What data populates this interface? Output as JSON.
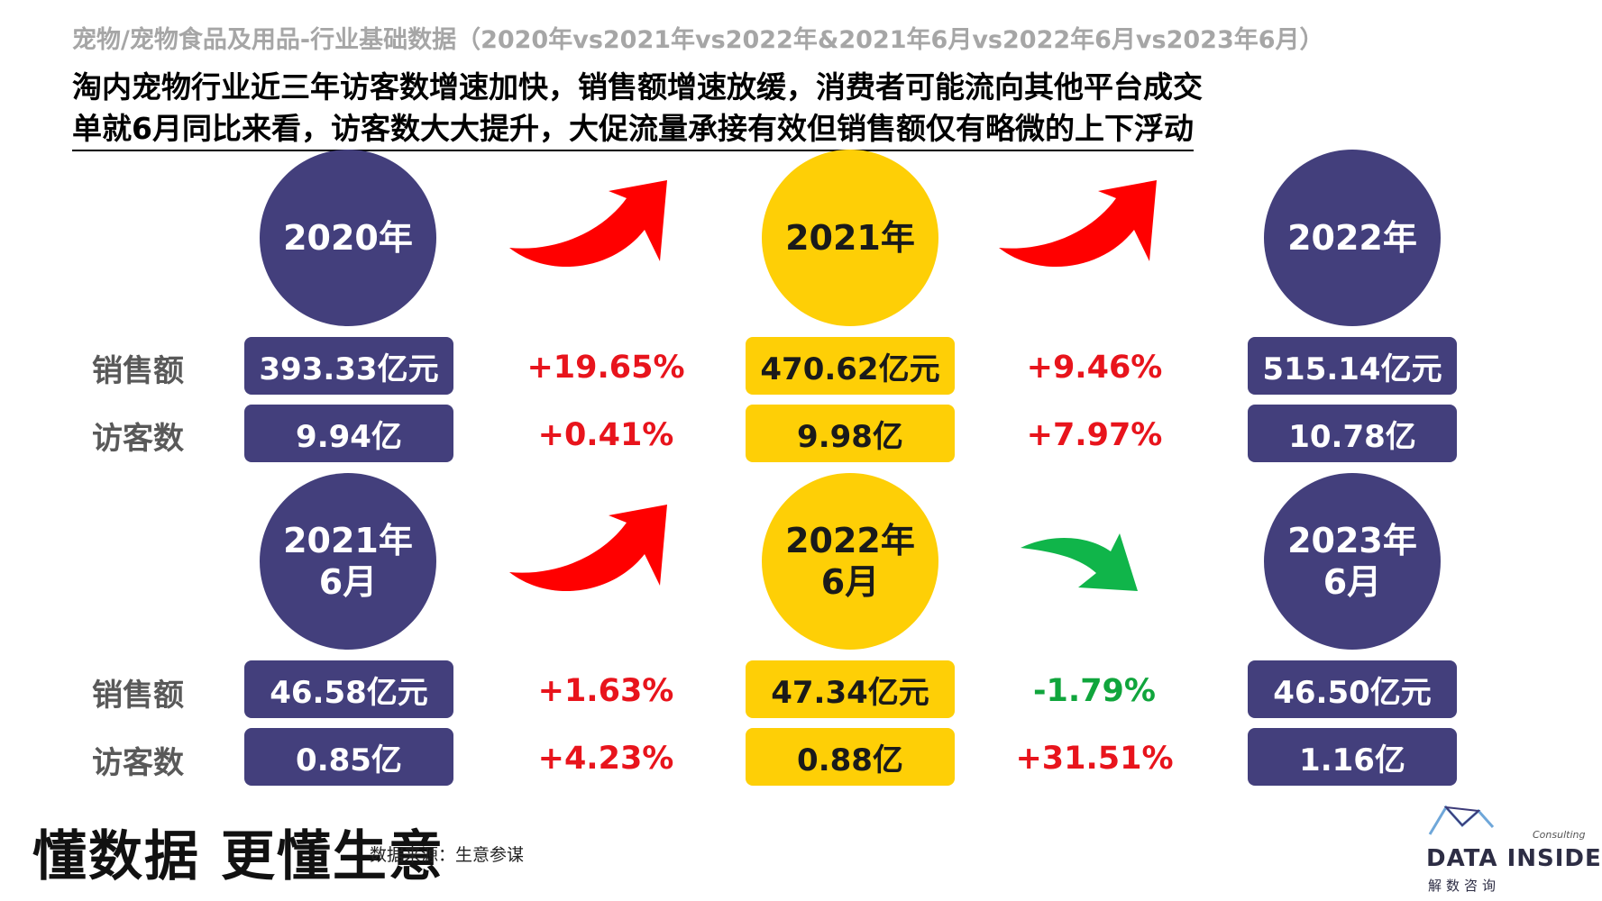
{
  "header": "宠物/宠物食品及用品-行业基础数据（2020年vs2021年vs2022年&2021年6月vs2022年6月vs2023年6月）",
  "headline": {
    "line1": "淘内宠物行业近三年访客数增速加快，销售额增速放缓，消费者可能流向其他平台成交",
    "line2": "单就6月同比来看，访客数大大提升，大促流量承接有效但销售额仅有略微的上下浮动"
  },
  "labels": {
    "sales": "销售额",
    "visitors": "访客数"
  },
  "top": {
    "periods": [
      "2020年",
      "2021年",
      "2022年"
    ],
    "sales": [
      "393.33亿元",
      "470.62亿元",
      "515.14亿元"
    ],
    "visitors": [
      "9.94亿",
      "9.98亿",
      "10.78亿"
    ],
    "sales_growth": [
      "+19.65%",
      "+9.46%"
    ],
    "visitor_growth": [
      "+0.41%",
      "+7.97%"
    ],
    "arrows": [
      "red-up-arrow",
      "red-up-arrow"
    ]
  },
  "bottom": {
    "periods": [
      "2021年\n6月",
      "2022年\n6月",
      "2023年\n6月"
    ],
    "sales": [
      "46.58亿元",
      "47.34亿元",
      "46.50亿元"
    ],
    "visitors": [
      "0.85亿",
      "0.88亿",
      "1.16亿"
    ],
    "sales_growth": [
      "+1.63%",
      "-1.79%"
    ],
    "visitor_growth": [
      "+4.23%",
      "+31.51%"
    ],
    "arrows": [
      "red-up-arrow",
      "green-down-arrow"
    ]
  },
  "footer": {
    "slogan": "懂数据 更懂生意",
    "source": "数据来源：生意参谋",
    "logo_main": "DATA INSIDER",
    "logo_sub": "解数咨询",
    "logo_consulting": "Consulting"
  },
  "colors": {
    "navy": "#433f7c",
    "yellow": "#fecf06",
    "up": "#e8141c",
    "down": "#10a53c"
  }
}
